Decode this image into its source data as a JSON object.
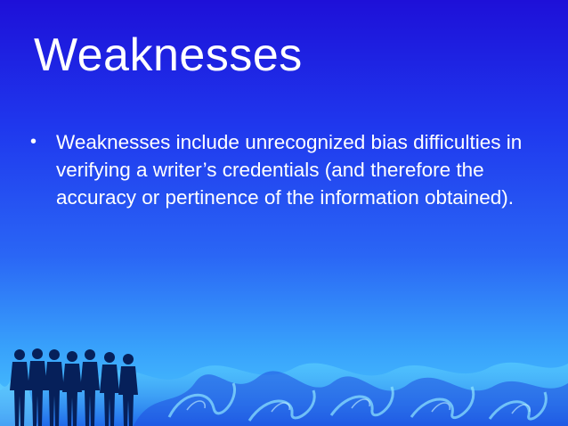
{
  "slide": {
    "title": "Weaknesses",
    "bullets": [
      {
        "marker": "•",
        "text": "Weaknesses include unrecognized bias difficulties in verifying a writer’s credentials (and therefore the accuracy or pertinence of the information obtained)."
      }
    ]
  },
  "theme": {
    "background_top": "#1e10d8",
    "background_bottom": "#4cc8ff",
    "text_color": "#ffffff",
    "silhouette_color": "#06205a"
  }
}
